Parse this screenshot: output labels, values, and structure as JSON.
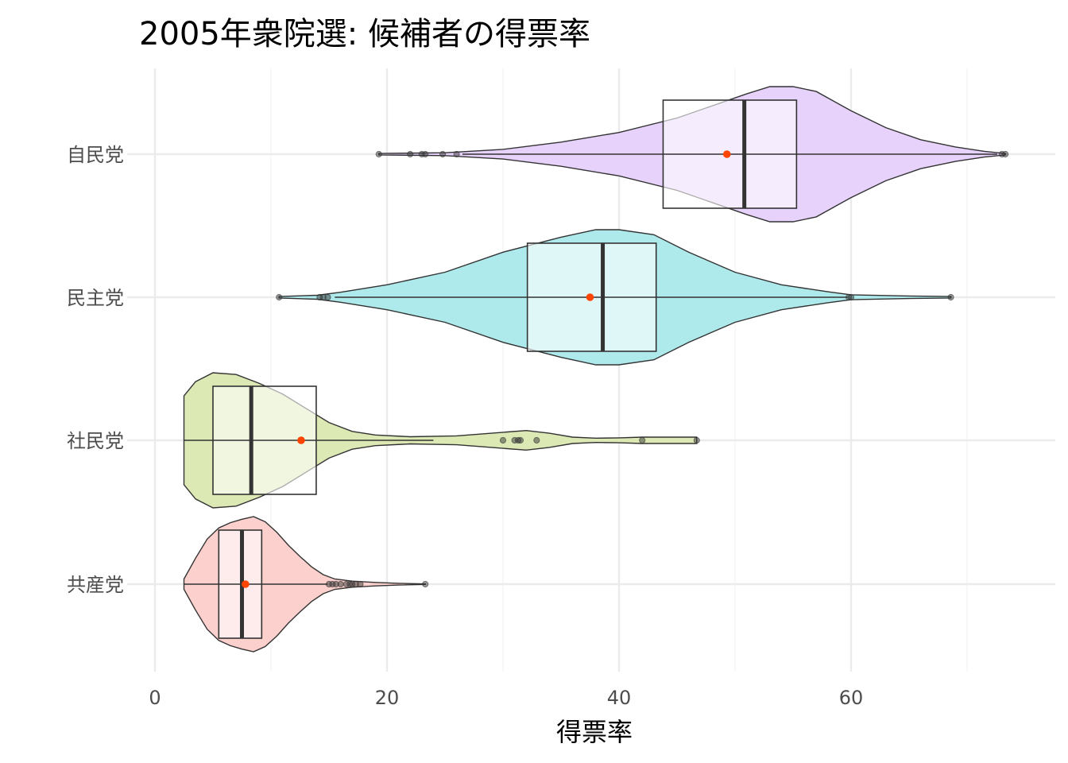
{
  "chart_data": {
    "type": "violin",
    "title": "2005年衆院選: 候補者の得票率",
    "xlabel": "得票率",
    "ylabel": "",
    "xlim": [
      -2.5,
      76
    ],
    "x_ticks": [
      0,
      20,
      40,
      60
    ],
    "x_minor_ticks": [
      10,
      30,
      50,
      70
    ],
    "grid": true,
    "legend": "none",
    "categories": [
      "自民党",
      "民主党",
      "社民党",
      "共産党"
    ],
    "series": [
      {
        "party": "自民党",
        "color": "#e7d2fb",
        "min": 19.3,
        "q1": 43.8,
        "median": 50.8,
        "q3": 55.3,
        "max": 73.3,
        "whisker_low": 26.5,
        "whisker_high": 72.6,
        "mean": 49.3,
        "outliers": [
          19.3,
          22.0,
          23.0,
          23.3,
          24.8,
          26.0,
          73.0,
          73.3
        ],
        "density": [
          [
            19.3,
            0.3
          ],
          [
            25,
            0.6
          ],
          [
            30,
            2
          ],
          [
            35,
            5
          ],
          [
            40,
            9
          ],
          [
            45,
            15
          ],
          [
            48,
            20
          ],
          [
            51,
            25
          ],
          [
            53,
            28
          ],
          [
            55,
            28
          ],
          [
            57,
            26
          ],
          [
            60,
            18
          ],
          [
            63,
            11
          ],
          [
            66,
            6
          ],
          [
            69,
            3
          ],
          [
            71.5,
            1.2
          ],
          [
            73.3,
            0.3
          ]
        ]
      },
      {
        "party": "民主党",
        "color": "#aeeaec",
        "min": 10.7,
        "q1": 32.1,
        "median": 38.6,
        "q3": 43.2,
        "max": 68.6,
        "whisker_low": 15.5,
        "whisker_high": 59.7,
        "mean": 37.5,
        "outliers": [
          10.7,
          14.2,
          14.5,
          14.9,
          59.8,
          60.0,
          68.6
        ],
        "density": [
          [
            10.7,
            0.3
          ],
          [
            14,
            0.8
          ],
          [
            16,
            2
          ],
          [
            20,
            5
          ],
          [
            25,
            10
          ],
          [
            30,
            18
          ],
          [
            35,
            24
          ],
          [
            38,
            27
          ],
          [
            40,
            27
          ],
          [
            43,
            25
          ],
          [
            46,
            18
          ],
          [
            50,
            10
          ],
          [
            54,
            5
          ],
          [
            58,
            2.2
          ],
          [
            60,
            1
          ],
          [
            65,
            0.5
          ],
          [
            68.6,
            0.3
          ]
        ]
      },
      {
        "party": "社民党",
        "color": "#dce9b4",
        "min": 2.5,
        "q1": 5.0,
        "median": 8.3,
        "q3": 13.9,
        "max": 46.7,
        "whisker_low": 2.5,
        "whisker_high": 24.0,
        "mean": 12.6,
        "outliers": [
          30.0,
          31.0,
          31.3,
          31.5,
          32.9,
          42.0,
          46.7
        ],
        "density": [
          [
            2.5,
            25
          ],
          [
            3.5,
            33
          ],
          [
            5,
            38
          ],
          [
            7,
            37
          ],
          [
            9,
            32
          ],
          [
            11,
            26
          ],
          [
            13,
            18
          ],
          [
            15,
            10
          ],
          [
            17,
            5
          ],
          [
            19,
            3
          ],
          [
            22,
            2
          ],
          [
            26,
            2.5
          ],
          [
            28,
            3.5
          ],
          [
            30,
            4.5
          ],
          [
            32,
            5.5
          ],
          [
            34,
            4
          ],
          [
            36,
            1.8
          ],
          [
            38,
            1.2
          ],
          [
            40,
            1.4
          ],
          [
            42,
            1.8
          ],
          [
            44,
            1.8
          ],
          [
            46.7,
            1.8
          ]
        ]
      },
      {
        "party": "共産党",
        "color": "#fbd0cd",
        "min": 2.5,
        "q1": 5.5,
        "median": 7.5,
        "q3": 9.2,
        "max": 23.3,
        "whisker_low": 2.5,
        "whisker_high": 14.9,
        "mean": 7.8,
        "outliers": [
          15.0,
          15.3,
          15.6,
          16.0,
          16.5,
          16.8,
          17.0,
          17.3,
          17.7,
          23.3
        ],
        "density": [
          [
            2.5,
            6
          ],
          [
            3.5,
            30
          ],
          [
            4.5,
            52
          ],
          [
            5.5,
            65
          ],
          [
            6.5,
            71
          ],
          [
            7.5,
            75
          ],
          [
            8.5,
            78
          ],
          [
            9.5,
            72
          ],
          [
            10.5,
            60
          ],
          [
            11.5,
            45
          ],
          [
            12.5,
            32
          ],
          [
            13.5,
            20
          ],
          [
            14.5,
            11
          ],
          [
            15.5,
            6
          ],
          [
            17,
            3.5
          ],
          [
            19,
            2
          ],
          [
            21,
            1
          ],
          [
            23.3,
            0.3
          ]
        ]
      }
    ]
  }
}
